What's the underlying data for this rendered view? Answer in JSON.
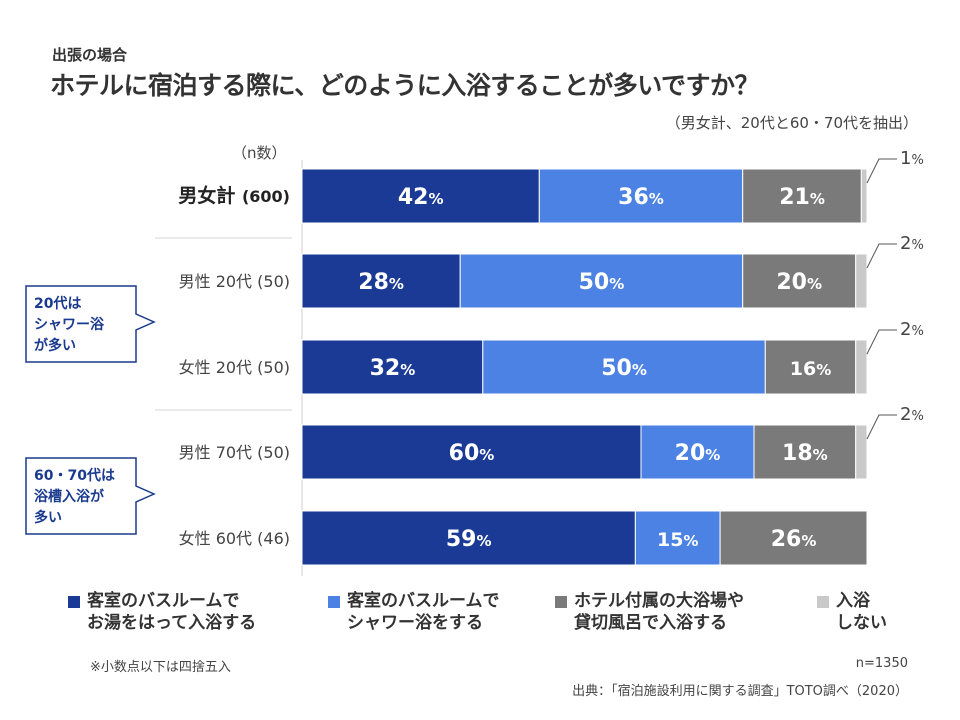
{
  "subtitle": "出張の場合",
  "title": "ホテルに宿泊する際に、どのように入浴することが多いですか？",
  "scope_note": "（男女計、20代と60・70代を抽出）",
  "n_header": "（n数）",
  "colors": {
    "dark_blue": "#1a3a96",
    "light_blue": "#4b82e3",
    "dark_gray": "#7a7a7a",
    "light_gray": "#c9c9c9"
  },
  "callouts": [
    {
      "lines": [
        "20代は",
        "シャワー浴",
        "が多い"
      ]
    },
    {
      "lines": [
        "60・70代は",
        "浴槽入浴が",
        "多い"
      ]
    }
  ],
  "legend": [
    {
      "label": "客室のバスルームで\nお湯をはって入浴する",
      "color": "#1a3a96"
    },
    {
      "label": "客室のバスルームで\nシャワー浴をする",
      "color": "#4b82e3"
    },
    {
      "label": "ホテル付属の大浴場や\n貸切風呂で入浴する",
      "color": "#7a7a7a"
    },
    {
      "label": "入浴\nしない",
      "color": "#c9c9c9"
    }
  ],
  "footnote": "※小数点以下は四捨五入",
  "n_total": "n=1350",
  "source": "出典：「宿泊施設利用に関する調査」TOTO調べ（2020）",
  "chart_data": {
    "type": "bar",
    "orientation": "horizontal",
    "stacked": true,
    "percent_stacked": true,
    "categories": [
      "男女計 (600)",
      "男性 20代 (50)",
      "女性 20代 (50)",
      "男性 70代 (50)",
      "女性 60代 (46)"
    ],
    "series": [
      {
        "name": "客室のバスルームでお湯をはって入浴する",
        "values": [
          42,
          28,
          32,
          60,
          59
        ]
      },
      {
        "name": "客室のバスルームでシャワー浴をする",
        "values": [
          36,
          50,
          50,
          20,
          15
        ]
      },
      {
        "name": "ホテル付属の大浴場や貸切風呂で入浴する",
        "values": [
          21,
          20,
          16,
          18,
          26
        ]
      },
      {
        "name": "入浴しない",
        "values": [
          1,
          2,
          2,
          2,
          0
        ]
      }
    ],
    "value_suffix": "%",
    "legend_position": "bottom",
    "xlim": [
      0,
      100
    ]
  }
}
